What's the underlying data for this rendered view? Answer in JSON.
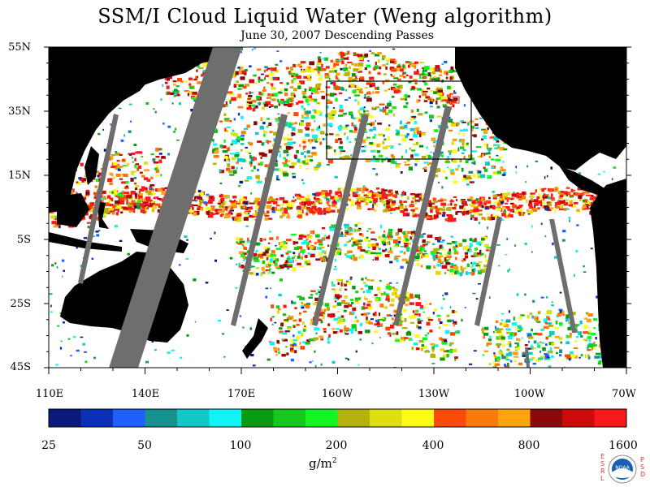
{
  "title": "SSM/I Cloud Liquid Water (Weng algorithm)",
  "subtitle": "June 30, 2007  Descending Passes",
  "map": {
    "lat_labels": [
      "55N",
      "35N",
      "15N",
      "5S",
      "25S",
      "45S"
    ],
    "lon_labels": [
      "110E",
      "140E",
      "170E",
      "160W",
      "130W",
      "100W",
      "70W"
    ],
    "land_color": "#000000",
    "no_data_color": "#6e6e6e",
    "ocean_clear_color": "#ffffff",
    "inset_box_color": "#000000",
    "marker_color": "#e02020"
  },
  "colorbar": {
    "colors": [
      "#0a1a7a",
      "#0b30b8",
      "#1f5fff",
      "#16918f",
      "#12c7c8",
      "#10f4f6",
      "#0a9a14",
      "#17c81c",
      "#12f522",
      "#b5b30b",
      "#dede10",
      "#fbfb16",
      "#fa4a0a",
      "#fa7b0a",
      "#fda40e",
      "#8a0a0a",
      "#cc0a0a",
      "#f61a1a"
    ],
    "tick_labels": [
      "25",
      "50",
      "100",
      "200",
      "400",
      "800",
      "1600"
    ],
    "units": "g/m",
    "units_sup": "2"
  },
  "logo": {
    "text": "NOAA",
    "left_letters": [
      "E",
      "S",
      "R",
      "L"
    ],
    "right_letters": [
      "P",
      "S",
      "D"
    ]
  }
}
